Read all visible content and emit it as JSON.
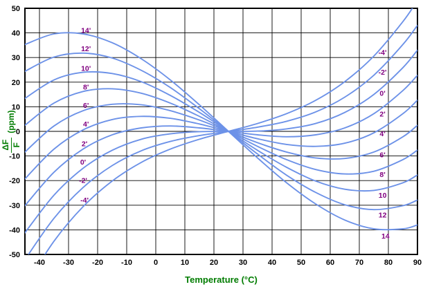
{
  "chart_data": {
    "type": "line",
    "title": "",
    "xlabel": "Temperature (°C)",
    "ylabel": "ΔF/F (ppm)",
    "ylabel_parts": {
      "numerator": "ΔF",
      "denominator": "F",
      "unit": "(ppm)"
    },
    "xlim": [
      -45,
      90
    ],
    "ylim": [
      -50,
      50
    ],
    "grid": true,
    "x_ticks": [
      -40,
      -30,
      -20,
      -10,
      0,
      10,
      20,
      30,
      40,
      50,
      60,
      70,
      80,
      90
    ],
    "y_ticks": [
      50,
      40,
      30,
      20,
      10,
      0,
      -10,
      -20,
      -30,
      -40,
      -50
    ],
    "x": [
      -45,
      -35,
      -25,
      -15,
      -5,
      5,
      15,
      25,
      35,
      45,
      55,
      65,
      75,
      85,
      90
    ],
    "series": [
      {
        "name": "14'",
        "angle_min": 14,
        "values": [
          35.3,
          39.6,
          39.6,
          36.0,
          29.5,
          20.9,
          10.8,
          0,
          -10.8,
          -20.9,
          -29.5,
          -36.0,
          -39.6,
          -39.6,
          -38.0
        ]
      },
      {
        "name": "12'",
        "angle_min": 12,
        "values": [
          24.4,
          30.2,
          31.8,
          29.8,
          24.8,
          17.8,
          9.2,
          0,
          -9.2,
          -17.8,
          -24.8,
          -29.8,
          -31.8,
          -30.2,
          -27.9
        ]
      },
      {
        "name": "10'",
        "angle_min": 10,
        "values": [
          13.4,
          20.9,
          24.0,
          23.5,
          20.2,
          14.6,
          7.7,
          0,
          -7.7,
          -14.6,
          -20.2,
          -23.5,
          -24.0,
          -20.9,
          -17.7
        ]
      },
      {
        "name": "8'",
        "angle_min": 8,
        "values": [
          2.5,
          11.5,
          16.2,
          17.3,
          15.5,
          11.5,
          6.1,
          0,
          -6.1,
          -11.5,
          -15.5,
          -17.3,
          -16.2,
          -11.5,
          -7.6
        ]
      },
      {
        "name": "6'",
        "angle_min": 6,
        "values": [
          -8.4,
          2.2,
          8.4,
          11.0,
          10.8,
          8.4,
          4.6,
          0,
          -4.6,
          -8.4,
          -10.8,
          -11.0,
          -8.4,
          -2.2,
          2.5
        ]
      },
      {
        "name": "4'",
        "angle_min": 4,
        "values": [
          -19.3,
          -7.2,
          0.6,
          4.8,
          6.1,
          5.3,
          3.0,
          0,
          -3.0,
          -5.3,
          -6.1,
          -4.8,
          -0.6,
          7.2,
          12.7
        ]
      },
      {
        "name": "2'",
        "angle_min": 2,
        "values": [
          -30.2,
          -16.6,
          -7.2,
          -1.4,
          1.4,
          2.2,
          1.4,
          0,
          -1.4,
          -2.2,
          -1.4,
          1.4,
          7.2,
          16.6,
          22.8
        ]
      },
      {
        "name": "0'",
        "angle_min": 0,
        "values": [
          -41.2,
          -25.9,
          -15.0,
          -7.7,
          -3.2,
          -1.0,
          -0.1,
          0,
          0.1,
          1.0,
          3.2,
          7.7,
          15.0,
          25.9,
          33.0
        ]
      },
      {
        "name": "-2'",
        "angle_min": -2,
        "values": [
          -52.1,
          -35.3,
          -22.8,
          -13.9,
          -7.9,
          -4.1,
          -1.7,
          0,
          1.7,
          4.1,
          7.9,
          13.9,
          22.8,
          35.3,
          43.1
        ]
      },
      {
        "name": "-4'",
        "angle_min": -4,
        "values": [
          -63.0,
          -44.6,
          -30.6,
          -20.2,
          -12.6,
          -7.2,
          -3.2,
          0,
          3.2,
          7.2,
          12.6,
          20.2,
          30.6,
          44.6,
          53.2
        ]
      }
    ],
    "left_labels": [
      {
        "text": "14'",
        "t": -24,
        "ppm": 41
      },
      {
        "text": "12'",
        "t": -24,
        "ppm": 33.5
      },
      {
        "text": "10'",
        "t": -24,
        "ppm": 25.5
      },
      {
        "text": "8'",
        "t": -24,
        "ppm": 18
      },
      {
        "text": "6'",
        "t": -24,
        "ppm": 10.5
      },
      {
        "text": "4'",
        "t": -24,
        "ppm": 3
      },
      {
        "text": "2'",
        "t": -24.5,
        "ppm": -5
      },
      {
        "text": "0'",
        "t": -25,
        "ppm": -12.5
      },
      {
        "text": "-2'",
        "t": -25,
        "ppm": -20
      },
      {
        "text": "-4'",
        "t": -24.5,
        "ppm": -28
      }
    ],
    "right_labels": [
      {
        "text": "-4'",
        "t": 78,
        "ppm": 32
      },
      {
        "text": "-2'",
        "t": 78,
        "ppm": 24
      },
      {
        "text": "0'",
        "t": 78,
        "ppm": 15.5
      },
      {
        "text": "2'",
        "t": 78,
        "ppm": 7
      },
      {
        "text": "4'",
        "t": 78,
        "ppm": -1
      },
      {
        "text": "6'",
        "t": 78,
        "ppm": -9.5
      },
      {
        "text": "8'",
        "t": 78,
        "ppm": -17.5
      },
      {
        "text": "10",
        "t": 78,
        "ppm": -26
      },
      {
        "text": "12",
        "t": 78,
        "ppm": -34
      },
      {
        "text": "14",
        "t": 79,
        "ppm": -42.5
      }
    ],
    "curve_color": "#6d92e8",
    "label_color": "#800080",
    "axis_title_color": "#007c00",
    "tick_color": "#000000",
    "grid_color": "#000000"
  }
}
